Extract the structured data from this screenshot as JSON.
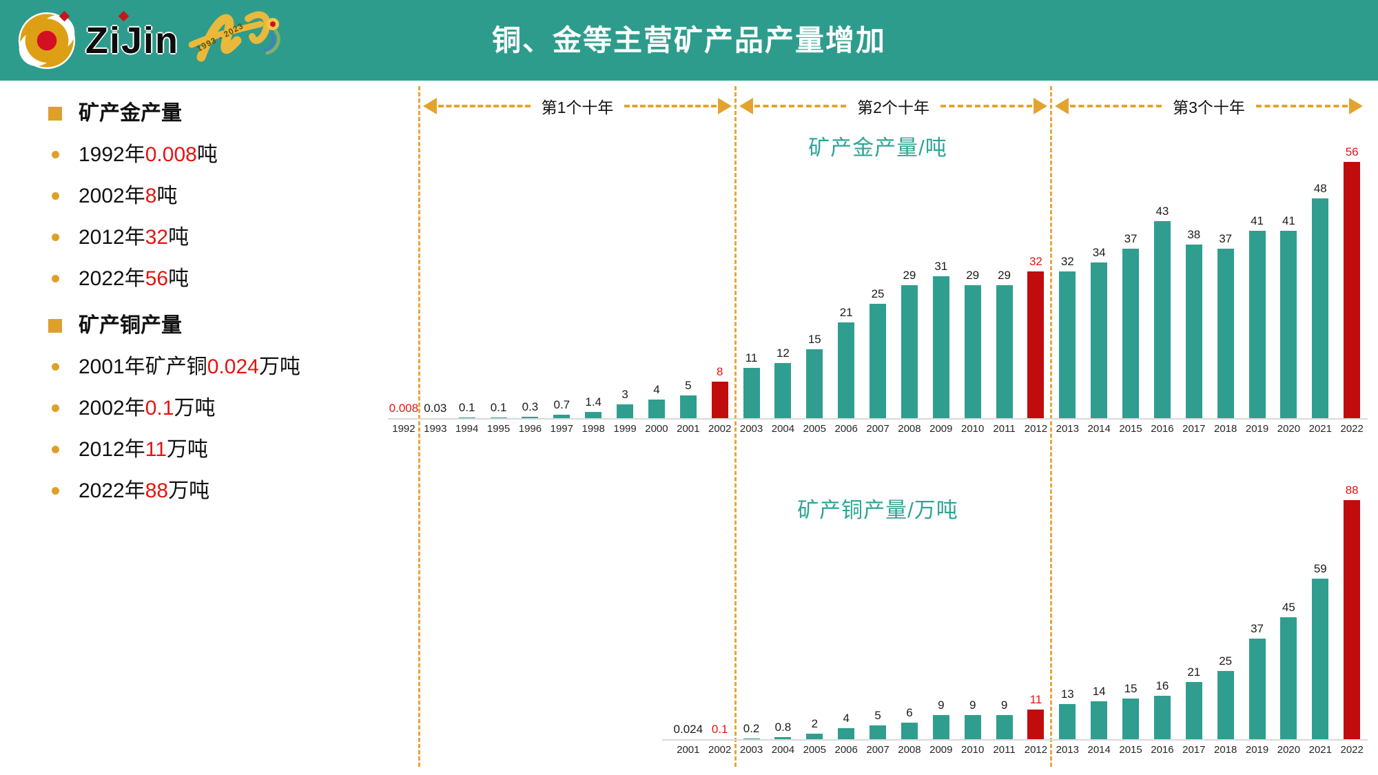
{
  "header": {
    "title": "铜、金等主营矿产品产量增加",
    "brand": {
      "wordmark": "ZiJin",
      "anniversary_years": "1993 - 2023"
    }
  },
  "sidebar": {
    "sections": [
      {
        "title": "矿产金产量",
        "items": [
          {
            "prefix": "1992年",
            "highlight": "0.008",
            "suffix": "吨"
          },
          {
            "prefix": "2002年",
            "highlight": "8",
            "suffix": "吨"
          },
          {
            "prefix": "2012年",
            "highlight": "32",
            "suffix": "吨"
          },
          {
            "prefix": "2022年",
            "highlight": "56",
            "suffix": "吨"
          }
        ]
      },
      {
        "title": "矿产铜产量",
        "items": [
          {
            "prefix": "2001年矿产铜",
            "highlight": "0.024",
            "suffix": "万吨"
          },
          {
            "prefix": "2002年",
            "highlight": "0.1",
            "suffix": "万吨"
          },
          {
            "prefix": "2012年",
            "highlight": "11",
            "suffix": "万吨"
          },
          {
            "prefix": "2022年",
            "highlight": "88",
            "suffix": "万吨"
          }
        ]
      }
    ]
  },
  "decade_bands": [
    {
      "label": "第1个十年"
    },
    {
      "label": "第2个十年"
    },
    {
      "label": "第3个十年"
    }
  ],
  "chart_data": [
    {
      "type": "bar",
      "title": "矿产金产量/吨",
      "categories": [
        1992,
        1993,
        1994,
        1995,
        1996,
        1997,
        1998,
        1999,
        2000,
        2001,
        2002,
        2003,
        2004,
        2005,
        2006,
        2007,
        2008,
        2009,
        2010,
        2011,
        2012,
        2013,
        2014,
        2015,
        2016,
        2017,
        2018,
        2019,
        2020,
        2021,
        2022
      ],
      "values": [
        0.008,
        0.03,
        0.1,
        0.1,
        0.3,
        0.7,
        1.4,
        3,
        4,
        5,
        8,
        11,
        12,
        15,
        21,
        25,
        29,
        31,
        29,
        29,
        32,
        32,
        34,
        37,
        43,
        38,
        37,
        41,
        41,
        48,
        56
      ],
      "highlight_label_years": [
        1992,
        2002,
        2012,
        2022
      ],
      "highlight_bar_years": [
        2002,
        2012,
        2022
      ],
      "xlabel": "",
      "ylabel": "吨",
      "ylim": [
        0,
        56
      ],
      "grid": false,
      "legend": "none"
    },
    {
      "type": "bar",
      "title": "矿产铜产量/万吨",
      "categories": [
        2001,
        2002,
        2003,
        2004,
        2005,
        2006,
        2007,
        2008,
        2009,
        2010,
        2011,
        2012,
        2013,
        2014,
        2015,
        2016,
        2017,
        2018,
        2019,
        2020,
        2021,
        2022
      ],
      "values": [
        0.024,
        0.1,
        0.2,
        0.8,
        2,
        4,
        5,
        6,
        9,
        9,
        9,
        11,
        13,
        14,
        15,
        16,
        21,
        25,
        37,
        45,
        59,
        88
      ],
      "highlight_label_years": [
        2002,
        2012,
        2022
      ],
      "highlight_bar_years": [
        2012,
        2022
      ],
      "xlabel": "",
      "ylabel": "万吨",
      "ylim": [
        0,
        88
      ],
      "grid": false,
      "legend": "none"
    }
  ],
  "colors": {
    "header_bg": "#2E9C8C",
    "bar_teal": "#2F9E8F",
    "bar_red": "#C00C0C",
    "text_red": "#E41410",
    "gold": "#E2A42F",
    "chart_title_teal": "#2FA495",
    "axis_line": "#D9D9D9"
  }
}
